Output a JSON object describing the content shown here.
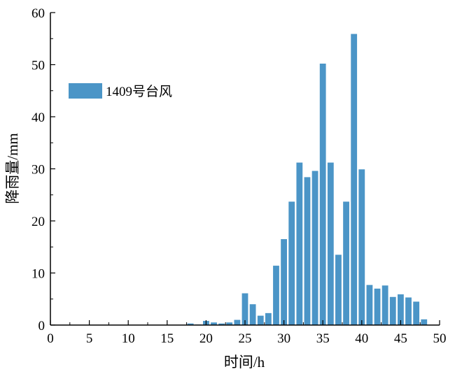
{
  "chart_data": {
    "type": "bar",
    "xlabel": "时间/h",
    "ylabel": "降雨量/mm",
    "xlim": [
      0,
      50
    ],
    "ylim": [
      0,
      60
    ],
    "x_ticks": [
      0,
      5,
      10,
      15,
      20,
      25,
      30,
      35,
      40,
      45,
      50
    ],
    "y_ticks": [
      0,
      10,
      20,
      30,
      40,
      50,
      60
    ],
    "grid": false,
    "legend_position": "top-left",
    "series": [
      {
        "name": "1409号台风",
        "color": "#4b95c7",
        "x": [
          18,
          19,
          20,
          21,
          22,
          23,
          24,
          25,
          26,
          27,
          28,
          29,
          30,
          31,
          32,
          33,
          34,
          35,
          36,
          37,
          38,
          39,
          40,
          41,
          42,
          43,
          44,
          45,
          46,
          47,
          48
        ],
        "values": [
          0.3,
          0.1,
          0.8,
          0.5,
          0.3,
          0.5,
          1.0,
          6.1,
          4.0,
          1.8,
          2.3,
          11.4,
          16.5,
          23.7,
          31.2,
          28.4,
          29.6,
          50.2,
          31.2,
          13.5,
          23.7,
          55.9,
          29.9,
          7.7,
          7.0,
          7.6,
          5.4,
          5.9,
          5.3,
          4.5,
          1.1
        ]
      }
    ]
  }
}
